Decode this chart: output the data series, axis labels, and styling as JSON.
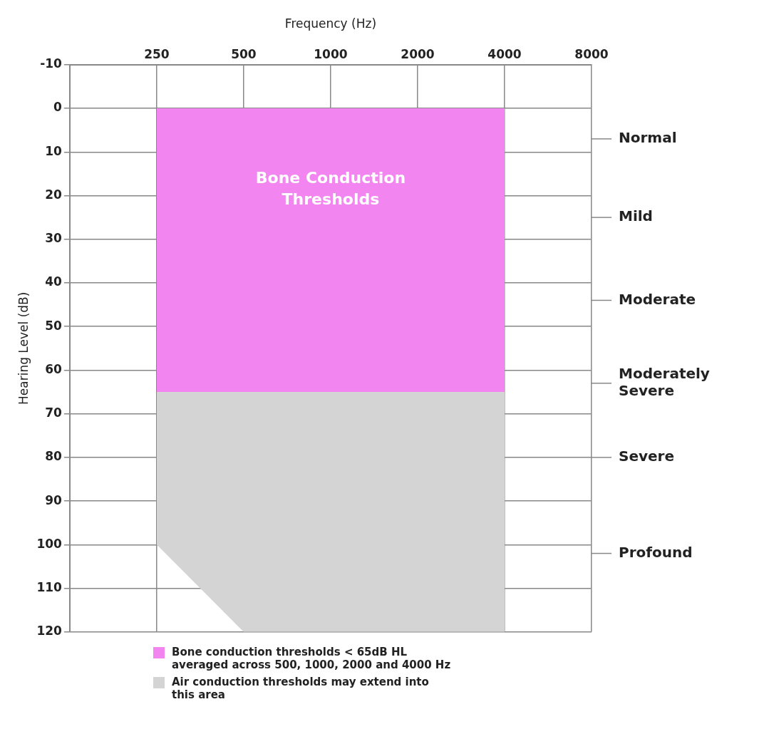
{
  "chart_data": {
    "type": "area",
    "xlabel": "Frequency (Hz)",
    "ylabel": "Hearing Level (dB)",
    "log": "x",
    "stacked": true,
    "x": [
      250,
      500,
      4000
    ],
    "series": [
      {
        "name": "Bone conduction thresholds < 65dB HL averaged across 500, 1000, 2000 and 4000 Hz",
        "color": "#f285f0",
        "values": [
          65,
          65,
          65
        ]
      },
      {
        "name": "Air conduction thresholds may extend into this area",
        "color": "#d4d4d4",
        "values": [
          35,
          55,
          55
        ]
      }
    ],
    "xlim": [
      125,
      8000
    ],
    "xticks": [
      250,
      500,
      1000,
      2000,
      4000,
      8000
    ],
    "ylim": [
      120,
      -10
    ],
    "yticks": [
      -10,
      0,
      10,
      20,
      30,
      40,
      50,
      60,
      70,
      80,
      90,
      100,
      110,
      120
    ],
    "ref_lines": [
      {
        "axis": "y",
        "value": 7,
        "label": "Normal"
      },
      {
        "axis": "y",
        "value": 25,
        "label": "Mild"
      },
      {
        "axis": "y",
        "value": 44,
        "label": "Moderate"
      },
      {
        "axis": "y",
        "value": 63,
        "label": "Moderately Severe"
      },
      {
        "axis": "y",
        "value": 80,
        "label": "Severe"
      },
      {
        "axis": "y",
        "value": 102,
        "label": "Profound"
      }
    ],
    "annotations": [
      "Bone Conduction Thresholds"
    ],
    "grid": true,
    "legend": "bottom"
  }
}
